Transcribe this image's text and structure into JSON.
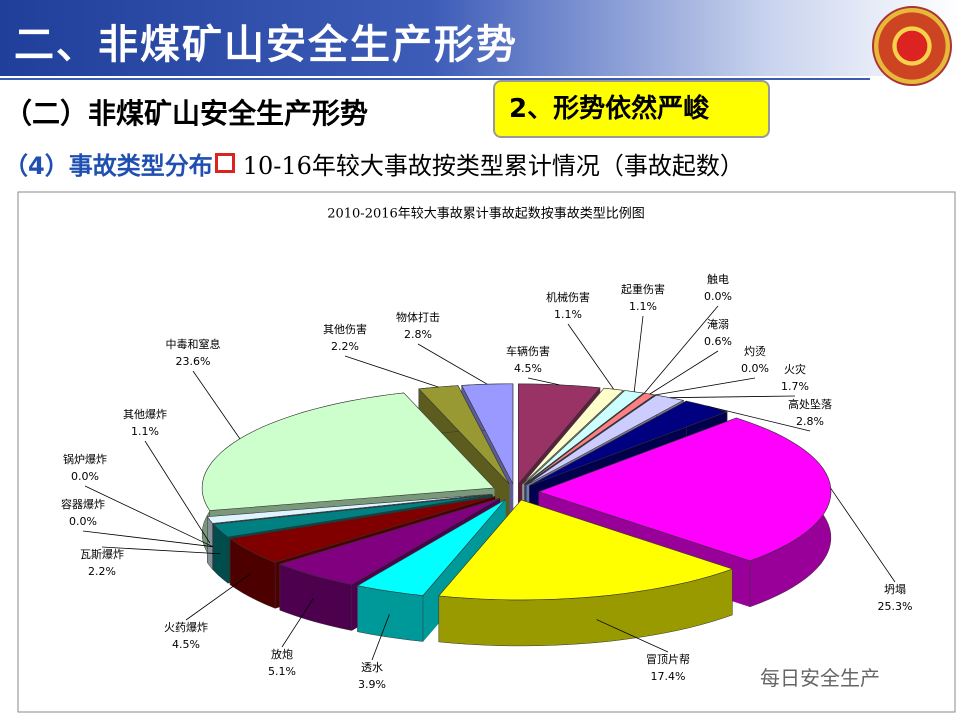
{
  "header": {
    "title": "二、非煤矿山安全生产形势",
    "subtitle": "（二）非煤矿山安全生产形势",
    "badge": "2、形势依然严峻",
    "section_label": "（4）事故类型分布",
    "section_caption": "10-16年较大事故按类型累计情况（事故起数）"
  },
  "watermark": "每日安全生产",
  "chart_data": {
    "type": "pie3d",
    "title": "2010-2016年较大事故累计事故起数按事故类型比例图",
    "categories": [
      "车辆伤害",
      "机械伤害",
      "起重伤害",
      "触电",
      "淹溺",
      "灼烫",
      "火灾",
      "高处坠落",
      "坍塌",
      "冒顶片帮",
      "透水",
      "放炮",
      "火药爆炸",
      "瓦斯爆炸",
      "容器爆炸",
      "锅炉爆炸",
      "其他爆炸",
      "中毒和窒息",
      "其他伤害",
      "物体打击"
    ],
    "values": [
      4.5,
      1.1,
      1.1,
      0.0,
      0.6,
      0.0,
      1.7,
      2.8,
      25.3,
      17.4,
      3.9,
      5.1,
      4.5,
      2.2,
      0.0,
      0.0,
      1.1,
      23.6,
      2.2,
      2.8
    ],
    "value_labels": [
      "4.5%",
      "1.1%",
      "1.1%",
      "0.0%",
      "0.6%",
      "0.0%",
      "1.7%",
      "2.8%",
      "25.3%",
      "17.4%",
      "3.9%",
      "5.1%",
      "4.5%",
      "2.2%",
      "0.0%",
      "0.0%",
      "1.1%",
      "23.6%",
      "2.2%",
      "2.8%"
    ],
    "colors": [
      "#993366",
      "#ffffcc",
      "#ccffff",
      "#660066",
      "#ff8080",
      "#0066cc",
      "#ccccff",
      "#000080",
      "#ff00ff",
      "#ffff00",
      "#00ffff",
      "#800080",
      "#800000",
      "#008080",
      "#0000ff",
      "#ccffff",
      "#e0f4ff",
      "#ccffcc",
      "#999933",
      "#9999ff"
    ]
  }
}
